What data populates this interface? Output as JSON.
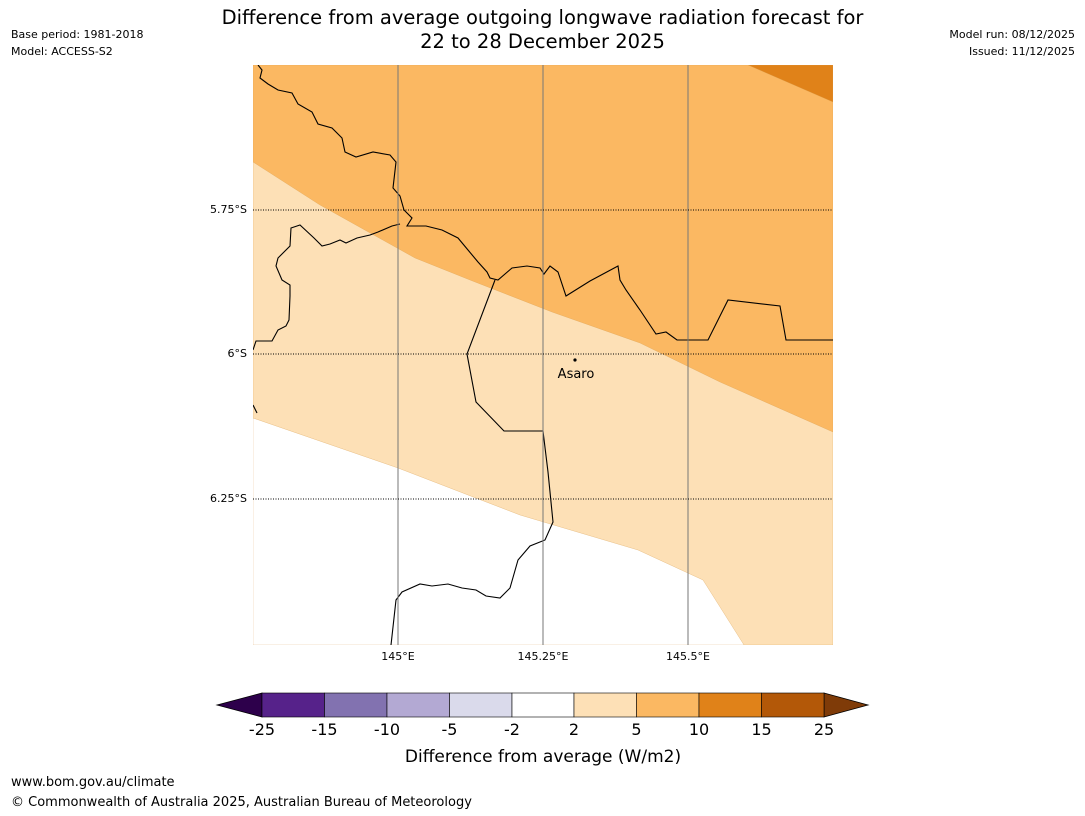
{
  "header": {
    "title_line1": "Difference from average outgoing longwave radiation forecast for",
    "title_line2": "22 to 28 December 2025",
    "base_period": "Base period: 1981-2018",
    "model": "Model: ACCESS-S2",
    "model_run": "Model run: 08/12/2025",
    "issued": "Issued: 11/12/2025"
  },
  "map": {
    "latitude_labels": [
      "5.75°S",
      "6°S",
      "6.25°S"
    ],
    "longitude_labels": [
      "145°E",
      "145.25°E",
      "145.5°E"
    ],
    "place_label": "Asaro",
    "bands": [
      {
        "category": "10 to 15",
        "color": "#e08219"
      },
      {
        "category": "5 to 10",
        "color": "#fbb862"
      },
      {
        "category": "2 to 5",
        "color": "#fde0b6"
      },
      {
        "category": "-2 to 2",
        "color": "#ffffff"
      }
    ]
  },
  "colorbar": {
    "ticks": [
      "-25",
      "-15",
      "-10",
      "-5",
      "-2",
      "2",
      "5",
      "10",
      "15",
      "25"
    ],
    "colors": [
      "#56228a",
      "#8272b0",
      "#b3a9d3",
      "#dadaeb",
      "#ffffff",
      "#fde0b6",
      "#fbb862",
      "#e08219",
      "#b35808"
    ],
    "extend_low_color": "#2d004b",
    "extend_high_color": "#7f3b08",
    "label": "Difference from average (W/m2)"
  },
  "footer": {
    "url": "www.bom.gov.au/climate",
    "copyright": "© Commonwealth of Australia 2025, Australian Bureau of Meteorology"
  }
}
